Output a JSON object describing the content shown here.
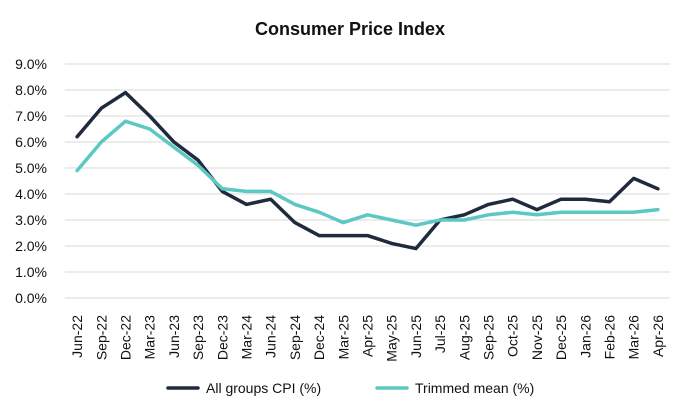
{
  "chart_data": {
    "type": "line",
    "title": "Consumer Price Index",
    "xlabel": "",
    "ylabel": "",
    "x": [
      "Jun-22",
      "Sep-22",
      "Dec-22",
      "Mar-23",
      "Jun-23",
      "Sep-23",
      "Dec-23",
      "Mar-24",
      "Jun-24",
      "Sep-24",
      "Dec-24",
      "Mar-25",
      "Apr-25",
      "May-25",
      "Jun-25",
      "Jul-25",
      "Aug-25",
      "Sep-25",
      "Oct-25",
      "Nov-25",
      "Dec-25",
      "Jan-26",
      "Feb-26",
      "Mar-26",
      "Apr-26"
    ],
    "series": [
      {
        "name": "All groups CPI (%)",
        "color": "#1f2a3c",
        "values": [
          6.2,
          7.3,
          7.9,
          7.0,
          6.0,
          5.3,
          4.1,
          3.6,
          3.8,
          2.9,
          2.4,
          2.4,
          2.4,
          2.1,
          1.9,
          3.0,
          3.2,
          3.6,
          3.8,
          3.4,
          3.8,
          3.8,
          3.7,
          4.6,
          4.2
        ]
      },
      {
        "name": "Trimmed mean (%)",
        "color": "#5bc8c4",
        "values": [
          4.9,
          6.0,
          6.8,
          6.5,
          5.8,
          5.1,
          4.2,
          4.1,
          4.1,
          3.6,
          3.3,
          2.9,
          3.2,
          3.0,
          2.8,
          3.0,
          3.0,
          3.2,
          3.3,
          3.2,
          3.3,
          3.3,
          3.3,
          3.3,
          3.4
        ]
      }
    ],
    "ylim": [
      0,
      9
    ],
    "y_ticks": [
      0,
      1,
      2,
      3,
      4,
      5,
      6,
      7,
      8,
      9
    ],
    "y_tick_labels": [
      "0.0%",
      "1.0%",
      "2.0%",
      "3.0%",
      "4.0%",
      "5.0%",
      "6.0%",
      "7.0%",
      "8.0%",
      "9.0%"
    ],
    "grid": true,
    "legend_position": "bottom"
  }
}
